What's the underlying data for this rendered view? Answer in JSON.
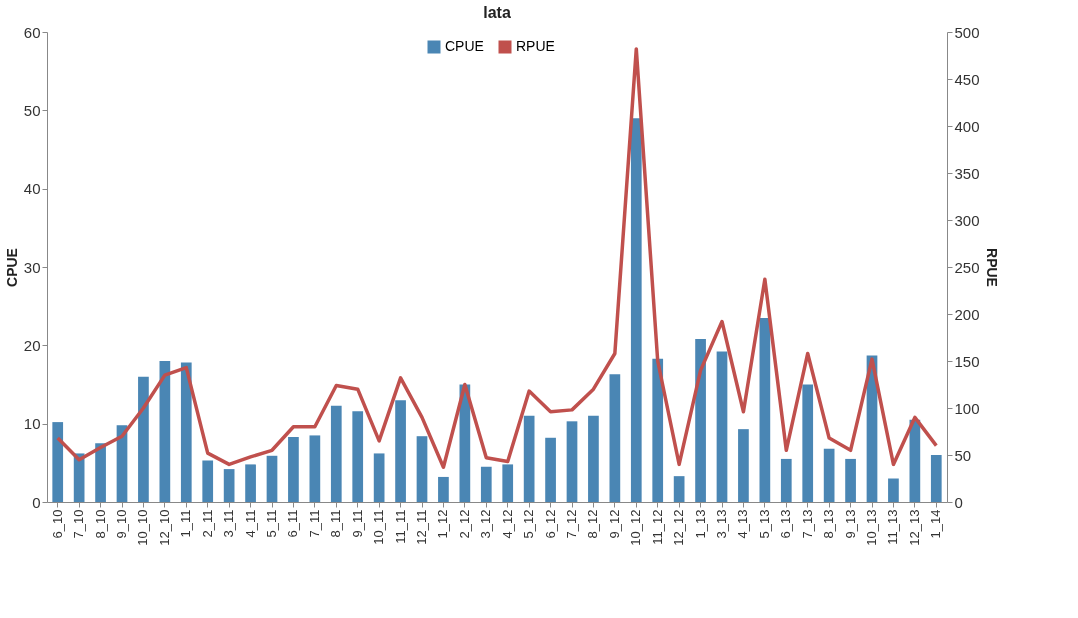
{
  "chart_data": {
    "type": "bar",
    "title": "lata",
    "ylabel": "CPUE",
    "y2label": "RPUE",
    "categories": [
      "6_10",
      "7_10",
      "8_10",
      "9_10",
      "10_10",
      "12_10",
      "1_11",
      "2_11",
      "3_11",
      "4_11",
      "5_11",
      "6_11",
      "7_11",
      "8_11",
      "9_11",
      "10_11",
      "11_11",
      "12_11",
      "1_12",
      "2_12",
      "3_12",
      "4_12",
      "5_12",
      "6_12",
      "7_12",
      "8_12",
      "9_12",
      "10_12",
      "11_12",
      "12_12",
      "1_13",
      "3_13",
      "4_13",
      "5_13",
      "6_13",
      "7_13",
      "8_13",
      "9_13",
      "10_13",
      "11_13",
      "12_13",
      "1_14"
    ],
    "series": [
      {
        "name": "CPUE",
        "color": "#4a86b4",
        "values": [
          10.2,
          6.2,
          7.5,
          9.8,
          16,
          18,
          17.8,
          5.3,
          4.2,
          4.8,
          5.9,
          8.3,
          8.5,
          12.3,
          11.6,
          6.2,
          13,
          8.4,
          3.2,
          15,
          4.5,
          4.8,
          11,
          8.2,
          10.3,
          11,
          16.3,
          49,
          18.3,
          3.3,
          20.8,
          19.2,
          9.3,
          23.5,
          5.5,
          15,
          6.8,
          5.5,
          18.7,
          3,
          10.5,
          6
        ]
      },
      {
        "name": "RPUE",
        "type": "line",
        "axis": "y2",
        "color": "#c0504d",
        "values": [
          68,
          45,
          58,
          70,
          100,
          135,
          143,
          52,
          40,
          48,
          55,
          80,
          80,
          124,
          120,
          65,
          132,
          90,
          37,
          125,
          47,
          43,
          118,
          96,
          98,
          120,
          158,
          482,
          150,
          40,
          140,
          192,
          96,
          237,
          55,
          158,
          68,
          55,
          152,
          40,
          90,
          60
        ]
      }
    ],
    "ylim": [
      0,
      60
    ],
    "yticks": [
      0,
      10,
      20,
      30,
      40,
      50,
      60
    ],
    "y2lim": [
      0,
      500
    ],
    "y2ticks": [
      0,
      50,
      100,
      150,
      200,
      250,
      300,
      350,
      400,
      450,
      500
    ],
    "grid": false,
    "legend": "top"
  }
}
